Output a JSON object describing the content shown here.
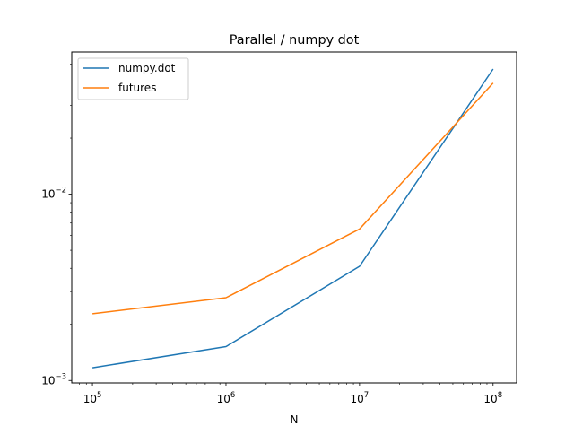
{
  "chart_data": {
    "type": "line",
    "title": "Parallel / numpy dot",
    "xlabel": "N",
    "ylabel": "",
    "xscale": "log",
    "yscale": "log",
    "x": [
      100000,
      1000000,
      10000000,
      100000000
    ],
    "xlim": [
      70000,
      150000000
    ],
    "ylim": [
      0.00097,
      0.058
    ],
    "x_ticks": [
      {
        "value": 100000,
        "base": "10",
        "exp": "5"
      },
      {
        "value": 1000000,
        "base": "10",
        "exp": "6"
      },
      {
        "value": 10000000,
        "base": "10",
        "exp": "7"
      },
      {
        "value": 100000000,
        "base": "10",
        "exp": "8"
      }
    ],
    "y_ticks": [
      {
        "value": 0.001,
        "base": "10",
        "exp": "−3"
      },
      {
        "value": 0.01,
        "base": "10",
        "exp": "−2"
      }
    ],
    "series": [
      {
        "name": "numpy.dot",
        "color": "#1f77b4",
        "values": [
          0.00117,
          0.00152,
          0.0041,
          0.047
        ]
      },
      {
        "name": "futures",
        "color": "#ff7f0e",
        "values": [
          0.00228,
          0.00278,
          0.0065,
          0.0395
        ]
      }
    ],
    "legend_position": "top-left",
    "grid": false
  }
}
